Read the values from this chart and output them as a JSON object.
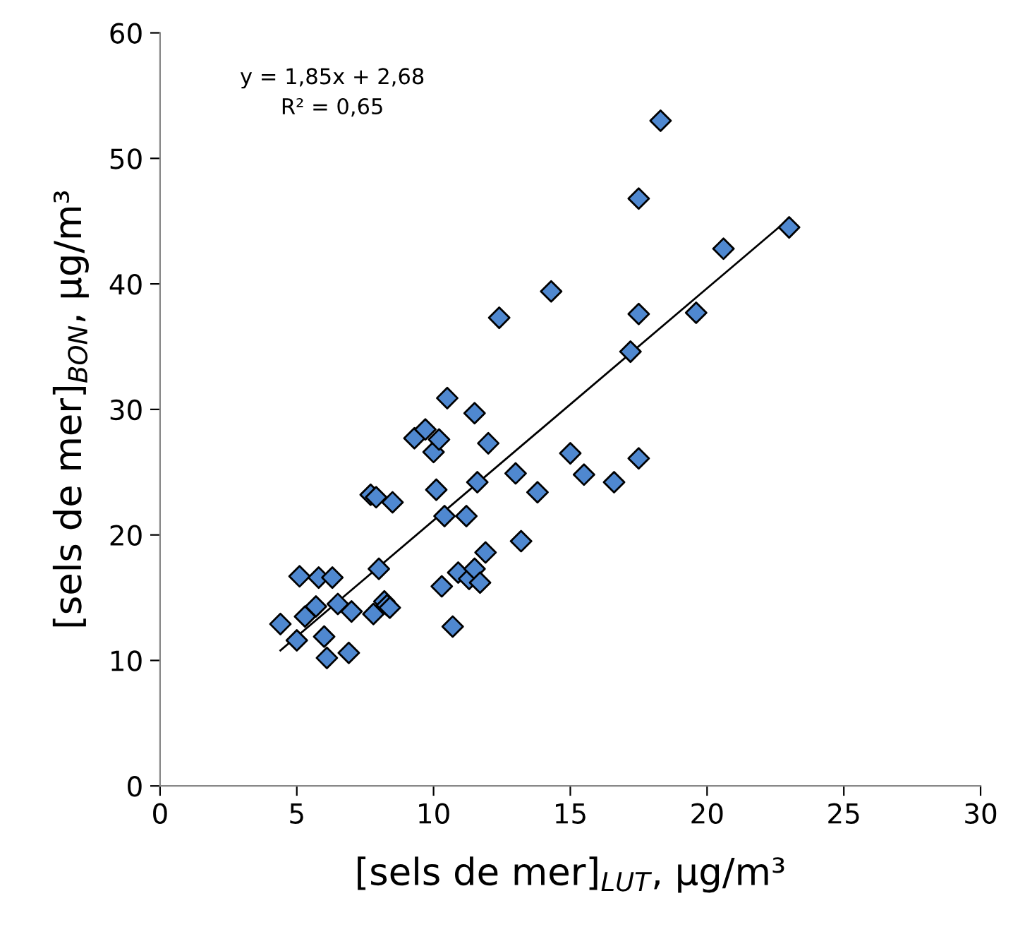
{
  "chart_data": {
    "type": "scatter",
    "xlabel": "[sels de mer]$_{LUT}$, µg/m³",
    "ylabel": "[sels de mer]$_{BON}$, µg/m³",
    "annotations": [
      "y = 1,85x + 2,68",
      "R² = 0,65"
    ],
    "xlim": [
      0,
      30
    ],
    "ylim": [
      0,
      60
    ],
    "xticks": [
      0,
      5,
      10,
      15,
      20,
      25,
      30
    ],
    "yticks": [
      0,
      10,
      20,
      30,
      40,
      50,
      60
    ],
    "grid": false,
    "legend": false,
    "series": [
      {
        "color": "#4f88d0",
        "marker": "diamond",
        "x": [
          4.4,
          5.0,
          5.1,
          5.3,
          5.7,
          5.8,
          6.0,
          6.1,
          6.3,
          6.5,
          6.9,
          7.0,
          7.7,
          7.8,
          7.9,
          8.0,
          8.2,
          8.3,
          8.4,
          8.5,
          9.3,
          9.7,
          10.0,
          10.1,
          10.2,
          10.3,
          10.4,
          10.5,
          10.7,
          10.9,
          11.2,
          11.3,
          11.5,
          11.5,
          11.6,
          11.7,
          11.9,
          12.0,
          12.4,
          13.0,
          13.2,
          13.8,
          14.3,
          15.0,
          15.5,
          16.6,
          17.2,
          17.5,
          17.5,
          17.5,
          18.3,
          19.6,
          20.6,
          23.0
        ],
        "values": [
          12.9,
          11.6,
          16.7,
          13.5,
          14.3,
          16.6,
          11.9,
          10.2,
          16.6,
          14.5,
          10.6,
          13.9,
          23.2,
          13.7,
          23.0,
          17.3,
          14.7,
          14.4,
          14.2,
          22.6,
          27.7,
          28.4,
          26.6,
          23.6,
          27.6,
          15.9,
          21.5,
          30.9,
          12.7,
          17.0,
          21.5,
          16.5,
          17.3,
          29.7,
          24.2,
          16.2,
          18.6,
          27.3,
          37.3,
          24.9,
          19.5,
          23.4,
          39.4,
          26.5,
          24.8,
          24.2,
          34.6,
          46.8,
          37.6,
          26.1,
          53.0,
          37.7,
          42.8,
          44.5
        ]
      },
      {
        "type": "line",
        "color": "#000000",
        "marker": "none",
        "line_style": "solid",
        "x": [
          4.4,
          23.0
        ],
        "values": [
          10.8,
          45.2
        ]
      }
    ]
  }
}
